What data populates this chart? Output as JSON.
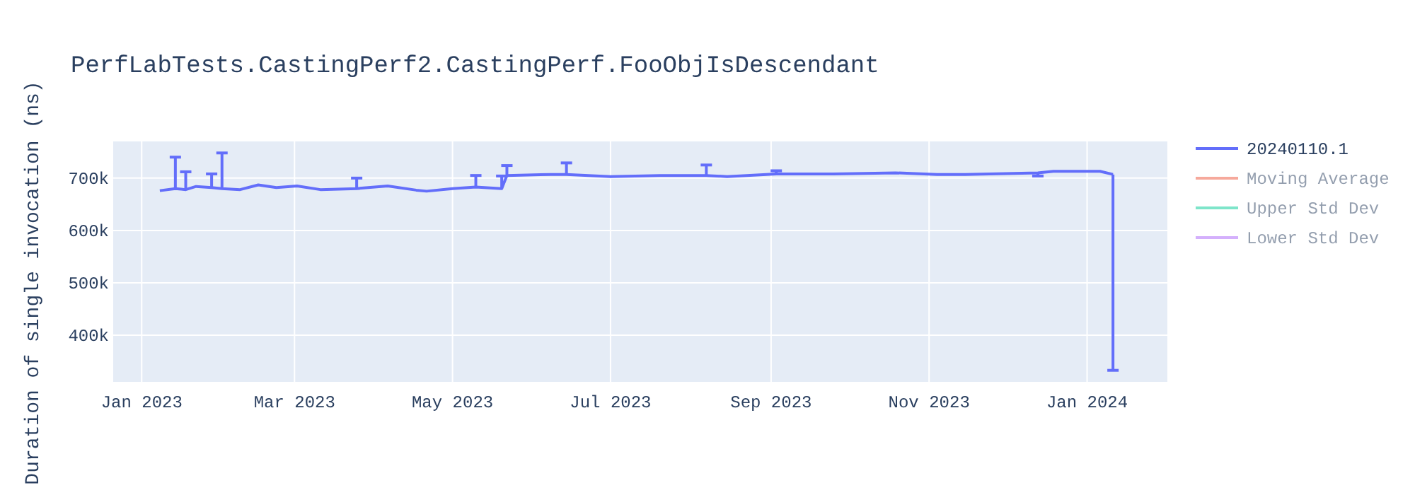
{
  "chart_data": {
    "type": "line",
    "title": "PerfLabTests.CastingPerf2.CastingPerf.FooObjIsDescendant",
    "ylabel": "Duration of single invocation (ns)",
    "x": [
      "2023-01-08",
      "2023-01-14",
      "2023-01-18",
      "2023-01-22",
      "2023-01-28",
      "2023-02-01",
      "2023-02-08",
      "2023-02-15",
      "2023-02-22",
      "2023-03-02",
      "2023-03-11",
      "2023-03-25",
      "2023-04-06",
      "2023-04-17",
      "2023-04-21",
      "2023-05-01",
      "2023-05-10",
      "2023-05-20",
      "2023-05-22",
      "2023-06-08",
      "2023-06-14",
      "2023-07-01",
      "2023-07-20",
      "2023-08-07",
      "2023-08-15",
      "2023-09-03",
      "2023-09-25",
      "2023-10-19",
      "2023-11-04",
      "2023-11-15",
      "2023-12-13",
      "2023-12-19",
      "2024-01-06",
      "2024-01-11"
    ],
    "series": [
      {
        "name": "20240110.1",
        "color": "#636efa",
        "values": [
          676000,
          680000,
          678000,
          684000,
          682000,
          680000,
          678000,
          687000,
          682000,
          685000,
          678000,
          680000,
          685000,
          677000,
          675000,
          680000,
          683000,
          680000,
          705000,
          707000,
          707000,
          703000,
          705000,
          705000,
          703000,
          708000,
          708000,
          710000,
          707000,
          707000,
          710000,
          713000,
          713000,
          707000
        ],
        "errors": [
          null,
          [
            680000,
            740000
          ],
          [
            678000,
            712000
          ],
          null,
          [
            682000,
            708000
          ],
          [
            680000,
            748000
          ],
          null,
          null,
          null,
          null,
          null,
          [
            680000,
            700000
          ],
          null,
          null,
          null,
          null,
          [
            683000,
            705000
          ],
          [
            680000,
            704000
          ],
          [
            705000,
            724000
          ],
          null,
          [
            707000,
            729000
          ],
          null,
          null,
          [
            705000,
            725000
          ],
          null,
          [
            708000,
            714000
          ],
          null,
          null,
          null,
          null,
          [
            704000,
            710000
          ],
          null,
          null,
          [
            333000,
            707000
          ]
        ]
      },
      {
        "name": "Moving Average",
        "color": "#ef553b",
        "values": [
          null,
          null,
          null,
          null,
          null,
          null,
          null,
          null,
          null,
          null,
          null,
          null,
          null,
          null,
          null,
          null,
          null,
          null,
          null,
          null,
          null,
          null,
          null,
          null,
          null,
          null,
          null,
          null,
          null,
          null,
          null,
          null,
          null,
          null
        ]
      },
      {
        "name": "Upper Std Dev",
        "color": "#00cc96",
        "values": [
          null,
          null,
          null,
          null,
          null,
          null,
          null,
          null,
          null,
          null,
          null,
          null,
          null,
          null,
          null,
          null,
          null,
          null,
          null,
          null,
          null,
          null,
          null,
          null,
          null,
          null,
          null,
          null,
          null,
          null,
          null,
          null,
          null,
          null
        ]
      },
      {
        "name": "Lower Std Dev",
        "color": "#ab63fa",
        "values": [
          null,
          null,
          null,
          null,
          null,
          null,
          null,
          null,
          null,
          null,
          null,
          null,
          null,
          null,
          null,
          null,
          null,
          null,
          null,
          null,
          null,
          null,
          null,
          null,
          null,
          null,
          null,
          null,
          null,
          null,
          null,
          null,
          null,
          null
        ]
      }
    ],
    "xlim": [
      "2022-12-21",
      "2024-02-01"
    ],
    "xticks": [
      {
        "value": "2023-01-01",
        "label": "Jan 2023"
      },
      {
        "value": "2023-03-01",
        "label": "Mar 2023"
      },
      {
        "value": "2023-05-01",
        "label": "May 2023"
      },
      {
        "value": "2023-07-01",
        "label": "Jul 2023"
      },
      {
        "value": "2023-09-01",
        "label": "Sep 2023"
      },
      {
        "value": "2023-11-01",
        "label": "Nov 2023"
      },
      {
        "value": "2024-01-01",
        "label": "Jan 2024"
      }
    ],
    "ylim": [
      311000,
      770000
    ],
    "yticks": [
      {
        "value": 400000,
        "label": "400k"
      },
      {
        "value": 500000,
        "label": "500k"
      },
      {
        "value": 600000,
        "label": "600k"
      },
      {
        "value": 700000,
        "label": "700k"
      }
    ],
    "grid": true,
    "legend": "right",
    "marker": "none",
    "line_style": "solid"
  }
}
